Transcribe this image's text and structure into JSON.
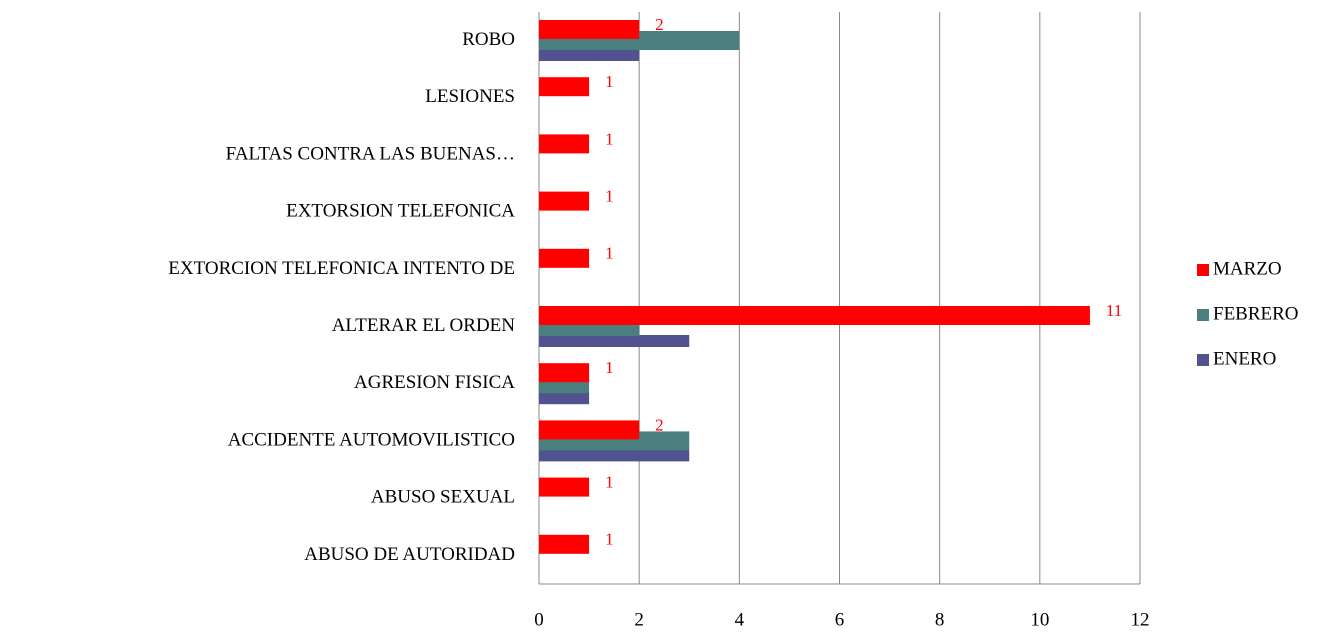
{
  "chart_data": {
    "type": "bar",
    "orientation": "horizontal",
    "categories": [
      "ROBO",
      "LESIONES",
      "FALTAS CONTRA LAS BUENAS…",
      "EXTORSION TELEFONICA",
      "EXTORCION TELEFONICA INTENTO DE",
      "ALTERAR EL ORDEN",
      "AGRESION FISICA",
      "ACCIDENTE AUTOMOVILISTICO",
      "ABUSO SEXUAL",
      "ABUSO DE AUTORIDAD"
    ],
    "series": [
      {
        "name": "MARZO",
        "color": "#ff0000",
        "show_labels": true,
        "values": [
          2,
          1,
          1,
          1,
          1,
          11,
          1,
          2,
          1,
          1
        ]
      },
      {
        "name": "FEBRERO",
        "color": "#4a7f80",
        "show_labels": false,
        "values": [
          4,
          null,
          null,
          null,
          null,
          2,
          1,
          3,
          null,
          null
        ]
      },
      {
        "name": "ENERO",
        "color": "#50538f",
        "show_labels": false,
        "values": [
          2,
          null,
          null,
          null,
          null,
          3,
          1,
          3,
          null,
          null
        ]
      }
    ],
    "xlim": [
      0,
      12
    ],
    "xticks": [
      0,
      2,
      4,
      6,
      8,
      10,
      12
    ],
    "grid": true,
    "legend": "right"
  }
}
